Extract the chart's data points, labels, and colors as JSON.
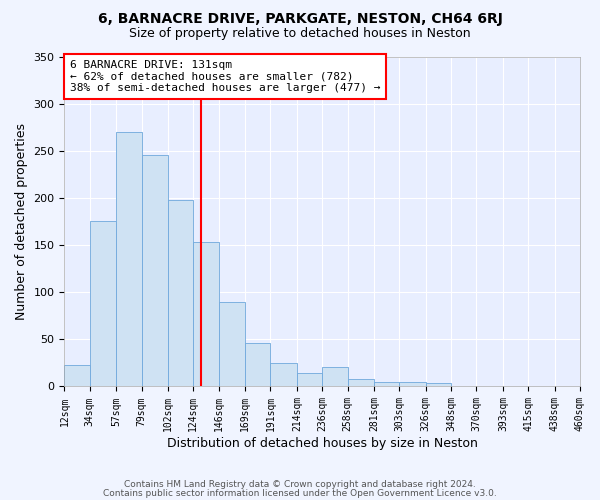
{
  "title": "6, BARNACRE DRIVE, PARKGATE, NESTON, CH64 6RJ",
  "subtitle": "Size of property relative to detached houses in Neston",
  "xlabel": "Distribution of detached houses by size in Neston",
  "ylabel": "Number of detached properties",
  "bar_edges": [
    12,
    34,
    57,
    79,
    102,
    124,
    146,
    169,
    191,
    214,
    236,
    258,
    281,
    303,
    326,
    348,
    370,
    393,
    415,
    438,
    460
  ],
  "bar_heights": [
    23,
    175,
    270,
    245,
    198,
    153,
    90,
    46,
    25,
    14,
    21,
    8,
    5,
    5,
    4,
    0,
    0,
    0,
    0,
    0
  ],
  "bar_color": "#cfe2f3",
  "bar_edgecolor": "#6fa8dc",
  "reference_line_x": 131,
  "reference_line_color": "red",
  "annotation_title": "6 BARNACRE DRIVE: 131sqm",
  "annotation_line1": "← 62% of detached houses are smaller (782)",
  "annotation_line2": "38% of semi-detached houses are larger (477) →",
  "annotation_box_edgecolor": "red",
  "xlim": [
    12,
    460
  ],
  "ylim": [
    0,
    350
  ],
  "yticks": [
    0,
    50,
    100,
    150,
    200,
    250,
    300,
    350
  ],
  "xtick_labels": [
    "12sqm",
    "34sqm",
    "57sqm",
    "79sqm",
    "102sqm",
    "124sqm",
    "146sqm",
    "169sqm",
    "191sqm",
    "214sqm",
    "236sqm",
    "258sqm",
    "281sqm",
    "303sqm",
    "326sqm",
    "348sqm",
    "370sqm",
    "393sqm",
    "415sqm",
    "438sqm",
    "460sqm"
  ],
  "xtick_positions": [
    12,
    34,
    57,
    79,
    102,
    124,
    146,
    169,
    191,
    214,
    236,
    258,
    281,
    303,
    326,
    348,
    370,
    393,
    415,
    438,
    460
  ],
  "footer_line1": "Contains HM Land Registry data © Crown copyright and database right 2024.",
  "footer_line2": "Contains public sector information licensed under the Open Government Licence v3.0.",
  "background_color": "#f0f4ff",
  "plot_bg_color": "#e8eeff",
  "grid_color": "#ffffff",
  "title_fontsize": 10,
  "subtitle_fontsize": 9,
  "xlabel_fontsize": 9,
  "ylabel_fontsize": 9,
  "xtick_fontsize": 7,
  "ytick_fontsize": 8,
  "footer_fontsize": 6.5
}
